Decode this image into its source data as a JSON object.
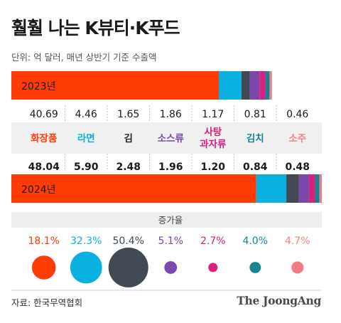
{
  "title": "훨훨 나는 K뷰티·K푸드",
  "unit_note": "단위: 억 달러, 매년 상반기 기준 수출액",
  "source": "자료: 한국무역협회",
  "brand": "The JoongAng",
  "chart_data": {
    "type": "bar",
    "stacked": true,
    "orientation": "horizontal",
    "categories": [
      "화장품",
      "라면",
      "김",
      "소스류",
      "사탕\n과자류",
      "김치",
      "소주"
    ],
    "category_colors": [
      "#ff3c06",
      "#0ab1e0",
      "#414a52",
      "#7a47ac",
      "#d62181",
      "#14848f",
      "#f27c86"
    ],
    "category_label_colors": [
      "#ff3c06",
      "#0ab1e0",
      "#222222",
      "#7a47ac",
      "#d62181",
      "#14848f",
      "#f27c86"
    ],
    "series": [
      {
        "name": "2023년",
        "values": [
          40.69,
          4.46,
          1.65,
          1.86,
          1.17,
          0.81,
          0.46
        ],
        "labels": [
          "40.69",
          "4.46",
          "1.65",
          "1.86",
          "1.17",
          "0.81",
          "0.46"
        ]
      },
      {
        "name": "2024년",
        "values": [
          48.04,
          5.9,
          2.48,
          1.96,
          1.2,
          0.84,
          0.48
        ],
        "labels": [
          "48.04",
          "5.90",
          "2.48",
          "1.96",
          "1.20",
          "0.84",
          "0.48"
        ]
      }
    ],
    "growth_title": "증가율",
    "growth_rates": [
      18.1,
      32.3,
      50.4,
      5.1,
      2.7,
      4.0,
      4.7
    ],
    "growth_labels": [
      "18.1%",
      "32.3%",
      "50.4%",
      "5.1%",
      "2.7%",
      "4.0%",
      "4.7%"
    ]
  }
}
